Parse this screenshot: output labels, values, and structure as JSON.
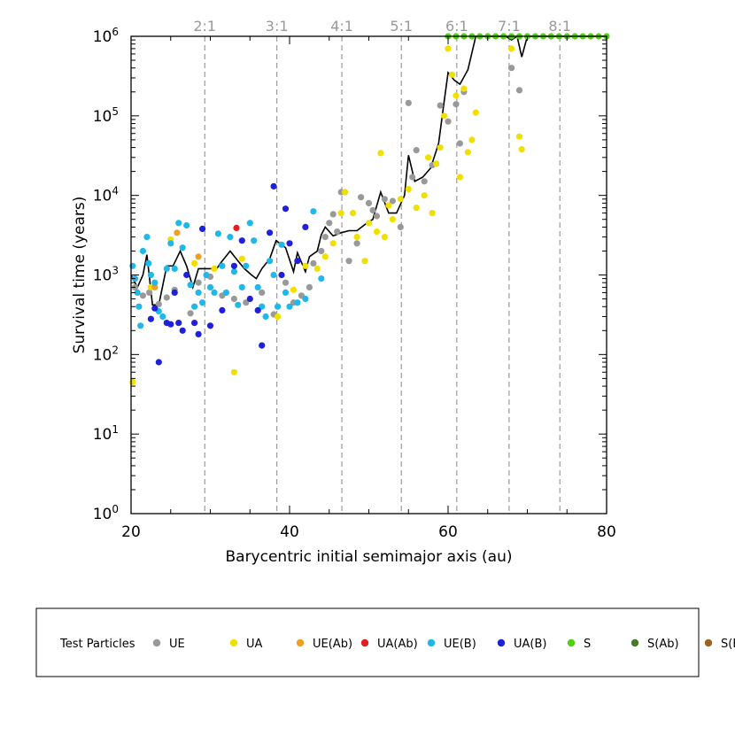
{
  "chart_data": {
    "type": "scatter",
    "title": "",
    "xlabel": "Barycentric initial semimajor axis (au)",
    "ylabel": "Survival time (years)",
    "xlim": [
      20,
      80
    ],
    "ylim": [
      1,
      1000000
    ],
    "y_scale": "log",
    "x_ticks": [
      20,
      40,
      60,
      80
    ],
    "y_ticks": [
      {
        "value": 1,
        "mantissa": "10",
        "exp": "0"
      },
      {
        "value": 10,
        "mantissa": "10",
        "exp": "1"
      },
      {
        "value": 100,
        "mantissa": "10",
        "exp": "2"
      },
      {
        "value": 1000,
        "mantissa": "10",
        "exp": "3"
      },
      {
        "value": 10000,
        "mantissa": "10",
        "exp": "4"
      },
      {
        "value": 100000,
        "mantissa": "10",
        "exp": "5"
      },
      {
        "value": 1000000,
        "mantissa": "10",
        "exp": "6"
      }
    ],
    "resonances": [
      {
        "label": "2:1",
        "a": 29.3
      },
      {
        "label": "3:1",
        "a": 38.4
      },
      {
        "label": "4:1",
        "a": 46.6
      },
      {
        "label": "5:1",
        "a": 54.1
      },
      {
        "label": "6:1",
        "a": 61.1
      },
      {
        "label": "7:1",
        "a": 67.7
      },
      {
        "label": "8:1",
        "a": 74.1
      }
    ],
    "legend_title": "Test Particles",
    "legend_position": "bottom",
    "series": [
      {
        "name": "UE",
        "color": "#999999",
        "points": [
          [
            20.5,
            700
          ],
          [
            21.5,
            550
          ],
          [
            22.3,
            600
          ],
          [
            23.5,
            430
          ],
          [
            24.5,
            520
          ],
          [
            25.5,
            650
          ],
          [
            27.5,
            330
          ],
          [
            28.5,
            800
          ],
          [
            30,
            950
          ],
          [
            31.5,
            550
          ],
          [
            33,
            500
          ],
          [
            34.5,
            450
          ],
          [
            36.5,
            600
          ],
          [
            38,
            320
          ],
          [
            39.5,
            800
          ],
          [
            40.5,
            450
          ],
          [
            41.5,
            550
          ],
          [
            42.5,
            700
          ],
          [
            43,
            1400
          ],
          [
            44,
            2000
          ],
          [
            44.5,
            3000
          ],
          [
            45,
            4500
          ],
          [
            45.5,
            5800
          ],
          [
            46,
            3500
          ],
          [
            46.5,
            11000
          ],
          [
            47.5,
            1500
          ],
          [
            48.5,
            2500
          ],
          [
            49,
            9500
          ],
          [
            50,
            8000
          ],
          [
            50.5,
            6500
          ],
          [
            51,
            5500
          ],
          [
            52,
            9000
          ],
          [
            53,
            8500
          ],
          [
            54,
            4000
          ],
          [
            55,
            145000
          ],
          [
            55.5,
            17000
          ],
          [
            56,
            37000
          ],
          [
            57,
            15000
          ],
          [
            58,
            24000
          ],
          [
            59,
            135000
          ],
          [
            60,
            85000
          ],
          [
            61,
            140000
          ],
          [
            61.5,
            45000
          ],
          [
            62,
            200000
          ],
          [
            68,
            400000
          ],
          [
            69,
            210000
          ]
        ]
      },
      {
        "name": "UA",
        "color": "#f0e000",
        "points": [
          [
            20.2,
            45
          ],
          [
            22.5,
            700
          ],
          [
            25,
            2800
          ],
          [
            28,
            1400
          ],
          [
            30.5,
            1200
          ],
          [
            33,
            60
          ],
          [
            34,
            1600
          ],
          [
            38.5,
            300
          ],
          [
            40.5,
            650
          ],
          [
            42,
            1300
          ],
          [
            43.5,
            1200
          ],
          [
            44.5,
            1700
          ],
          [
            45.5,
            2500
          ],
          [
            46.5,
            6000
          ],
          [
            47,
            11000
          ],
          [
            48,
            6000
          ],
          [
            48.5,
            3000
          ],
          [
            49.5,
            1500
          ],
          [
            50,
            4500
          ],
          [
            51,
            3500
          ],
          [
            51.5,
            34000
          ],
          [
            52,
            3000
          ],
          [
            52.5,
            7500
          ],
          [
            53,
            5000
          ],
          [
            54,
            9000
          ],
          [
            55,
            12000
          ],
          [
            56,
            7000
          ],
          [
            57,
            10000
          ],
          [
            57.5,
            30000
          ],
          [
            58,
            6000
          ],
          [
            58.5,
            25000
          ],
          [
            59,
            40000
          ],
          [
            59.5,
            100000
          ],
          [
            60,
            700000
          ],
          [
            60.5,
            330000
          ],
          [
            61,
            180000
          ],
          [
            61.5,
            17000
          ],
          [
            62,
            220000
          ],
          [
            62.5,
            35000
          ],
          [
            63,
            50000
          ],
          [
            63.5,
            110000
          ],
          [
            68,
            700000
          ],
          [
            69,
            55000
          ],
          [
            69.3,
            38000
          ]
        ]
      },
      {
        "name": "UE(Ab)",
        "color": "#f0a020",
        "points": [
          [
            23,
            700
          ],
          [
            25.8,
            3400
          ],
          [
            28.5,
            1700
          ]
        ]
      },
      {
        "name": "UA(Ab)",
        "color": "#e02020",
        "points": [
          [
            33.3,
            3900
          ]
        ]
      },
      {
        "name": "UE(B)",
        "color": "#20b8e8",
        "points": [
          [
            20.2,
            1300
          ],
          [
            20.5,
            900
          ],
          [
            20.8,
            600
          ],
          [
            21,
            400
          ],
          [
            21.2,
            230
          ],
          [
            21.5,
            2000
          ],
          [
            22,
            3000
          ],
          [
            22.2,
            1400
          ],
          [
            22.5,
            1000
          ],
          [
            23,
            800
          ],
          [
            23.5,
            350
          ],
          [
            24,
            300
          ],
          [
            24.5,
            1200
          ],
          [
            25,
            2500
          ],
          [
            25.5,
            1200
          ],
          [
            26,
            4500
          ],
          [
            26.5,
            2200
          ],
          [
            27,
            4200
          ],
          [
            27.5,
            750
          ],
          [
            28,
            400
          ],
          [
            28.5,
            600
          ],
          [
            29,
            450
          ],
          [
            29.5,
            1000
          ],
          [
            30,
            700
          ],
          [
            30.5,
            600
          ],
          [
            31,
            3300
          ],
          [
            31.5,
            1300
          ],
          [
            32,
            600
          ],
          [
            32.5,
            3000
          ],
          [
            33,
            1100
          ],
          [
            33.5,
            420
          ],
          [
            34,
            700
          ],
          [
            34.5,
            1300
          ],
          [
            35,
            4500
          ],
          [
            35.5,
            2700
          ],
          [
            36,
            700
          ],
          [
            36.5,
            400
          ],
          [
            37,
            300
          ],
          [
            37.5,
            1500
          ],
          [
            38,
            1000
          ],
          [
            38.5,
            400
          ],
          [
            39,
            2400
          ],
          [
            39.5,
            600
          ],
          [
            40,
            400
          ],
          [
            41,
            450
          ],
          [
            42,
            500
          ],
          [
            43,
            6300
          ],
          [
            44,
            900
          ]
        ]
      },
      {
        "name": "UA(B)",
        "color": "#2020d8",
        "points": [
          [
            22.5,
            280
          ],
          [
            23,
            380
          ],
          [
            23.5,
            80
          ],
          [
            24.5,
            250
          ],
          [
            25,
            240
          ],
          [
            25.5,
            600
          ],
          [
            26,
            250
          ],
          [
            26.5,
            200
          ],
          [
            27,
            1000
          ],
          [
            28,
            250
          ],
          [
            28.5,
            180
          ],
          [
            29,
            3800
          ],
          [
            30,
            230
          ],
          [
            31.5,
            360
          ],
          [
            33,
            1300
          ],
          [
            34,
            2700
          ],
          [
            35,
            500
          ],
          [
            36,
            360
          ],
          [
            36.5,
            130
          ],
          [
            37.5,
            3400
          ],
          [
            38,
            13000
          ],
          [
            39,
            1000
          ],
          [
            39.5,
            6800
          ],
          [
            40,
            2500
          ],
          [
            41,
            1500
          ],
          [
            42,
            4000
          ]
        ]
      },
      {
        "name": "S",
        "color": "#50d010",
        "points": [
          [
            60,
            1000000
          ],
          [
            61,
            1000000
          ],
          [
            62,
            1000000
          ],
          [
            63,
            1000000
          ],
          [
            64,
            1000000
          ],
          [
            65,
            1000000
          ],
          [
            66,
            1000000
          ],
          [
            67,
            1000000
          ],
          [
            68,
            1000000
          ],
          [
            69,
            1000000
          ],
          [
            70,
            1000000
          ],
          [
            71,
            1000000
          ],
          [
            72,
            1000000
          ],
          [
            73,
            1000000
          ],
          [
            74,
            1000000
          ],
          [
            75,
            1000000
          ],
          [
            76,
            1000000
          ],
          [
            77,
            1000000
          ],
          [
            78,
            1000000
          ],
          [
            79,
            1000000
          ],
          [
            80,
            1000000
          ]
        ]
      },
      {
        "name": "S(Ab)",
        "color": "#4a7a28",
        "points": []
      },
      {
        "name": "S(B)",
        "color": "#a06020",
        "points": []
      }
    ],
    "median_line": {
      "color": "#000000",
      "points": [
        [
          20,
          1000
        ],
        [
          20.8,
          700
        ],
        [
          21.5,
          1000
        ],
        [
          22,
          1800
        ],
        [
          22.7,
          420
        ],
        [
          23.5,
          420
        ],
        [
          24.5,
          1300
        ],
        [
          25.3,
          1300
        ],
        [
          26.2,
          2000
        ],
        [
          27,
          1300
        ],
        [
          27.8,
          700
        ],
        [
          28.5,
          1200
        ],
        [
          29.2,
          1200
        ],
        [
          30,
          1200
        ],
        [
          30.8,
          1200
        ],
        [
          31.5,
          1500
        ],
        [
          32.5,
          2000
        ],
        [
          33.5,
          1500
        ],
        [
          34.3,
          1200
        ],
        [
          35.2,
          1000
        ],
        [
          35.8,
          900
        ],
        [
          36.5,
          1200
        ],
        [
          37.5,
          1600
        ],
        [
          38.3,
          2700
        ],
        [
          39.5,
          2200
        ],
        [
          40.5,
          1100
        ],
        [
          41,
          1900
        ],
        [
          42,
          1100
        ],
        [
          42.5,
          1700
        ],
        [
          43.5,
          2000
        ],
        [
          44,
          3200
        ],
        [
          44.5,
          4000
        ],
        [
          45.5,
          3100
        ],
        [
          46.5,
          3400
        ],
        [
          47.5,
          3600
        ],
        [
          48.5,
          3600
        ],
        [
          49.5,
          4300
        ],
        [
          50.5,
          5000
        ],
        [
          51.5,
          11000
        ],
        [
          52.5,
          6000
        ],
        [
          53.5,
          6000
        ],
        [
          54.5,
          10000
        ],
        [
          55,
          32000
        ],
        [
          55.8,
          15000
        ],
        [
          56.8,
          17000
        ],
        [
          57.8,
          22000
        ],
        [
          58.8,
          45000
        ],
        [
          59.5,
          150000
        ],
        [
          60,
          350000
        ],
        [
          60.8,
          280000
        ],
        [
          61.5,
          250000
        ],
        [
          62.5,
          380000
        ],
        [
          63.5,
          1000000
        ],
        [
          64.5,
          1000000
        ],
        [
          66,
          1000000
        ],
        [
          67.3,
          1000000
        ],
        [
          68,
          900000
        ],
        [
          68.7,
          1000000
        ],
        [
          69.3,
          550000
        ],
        [
          70,
          1000000
        ],
        [
          71,
          1000000
        ],
        [
          80,
          1000000
        ]
      ]
    }
  }
}
